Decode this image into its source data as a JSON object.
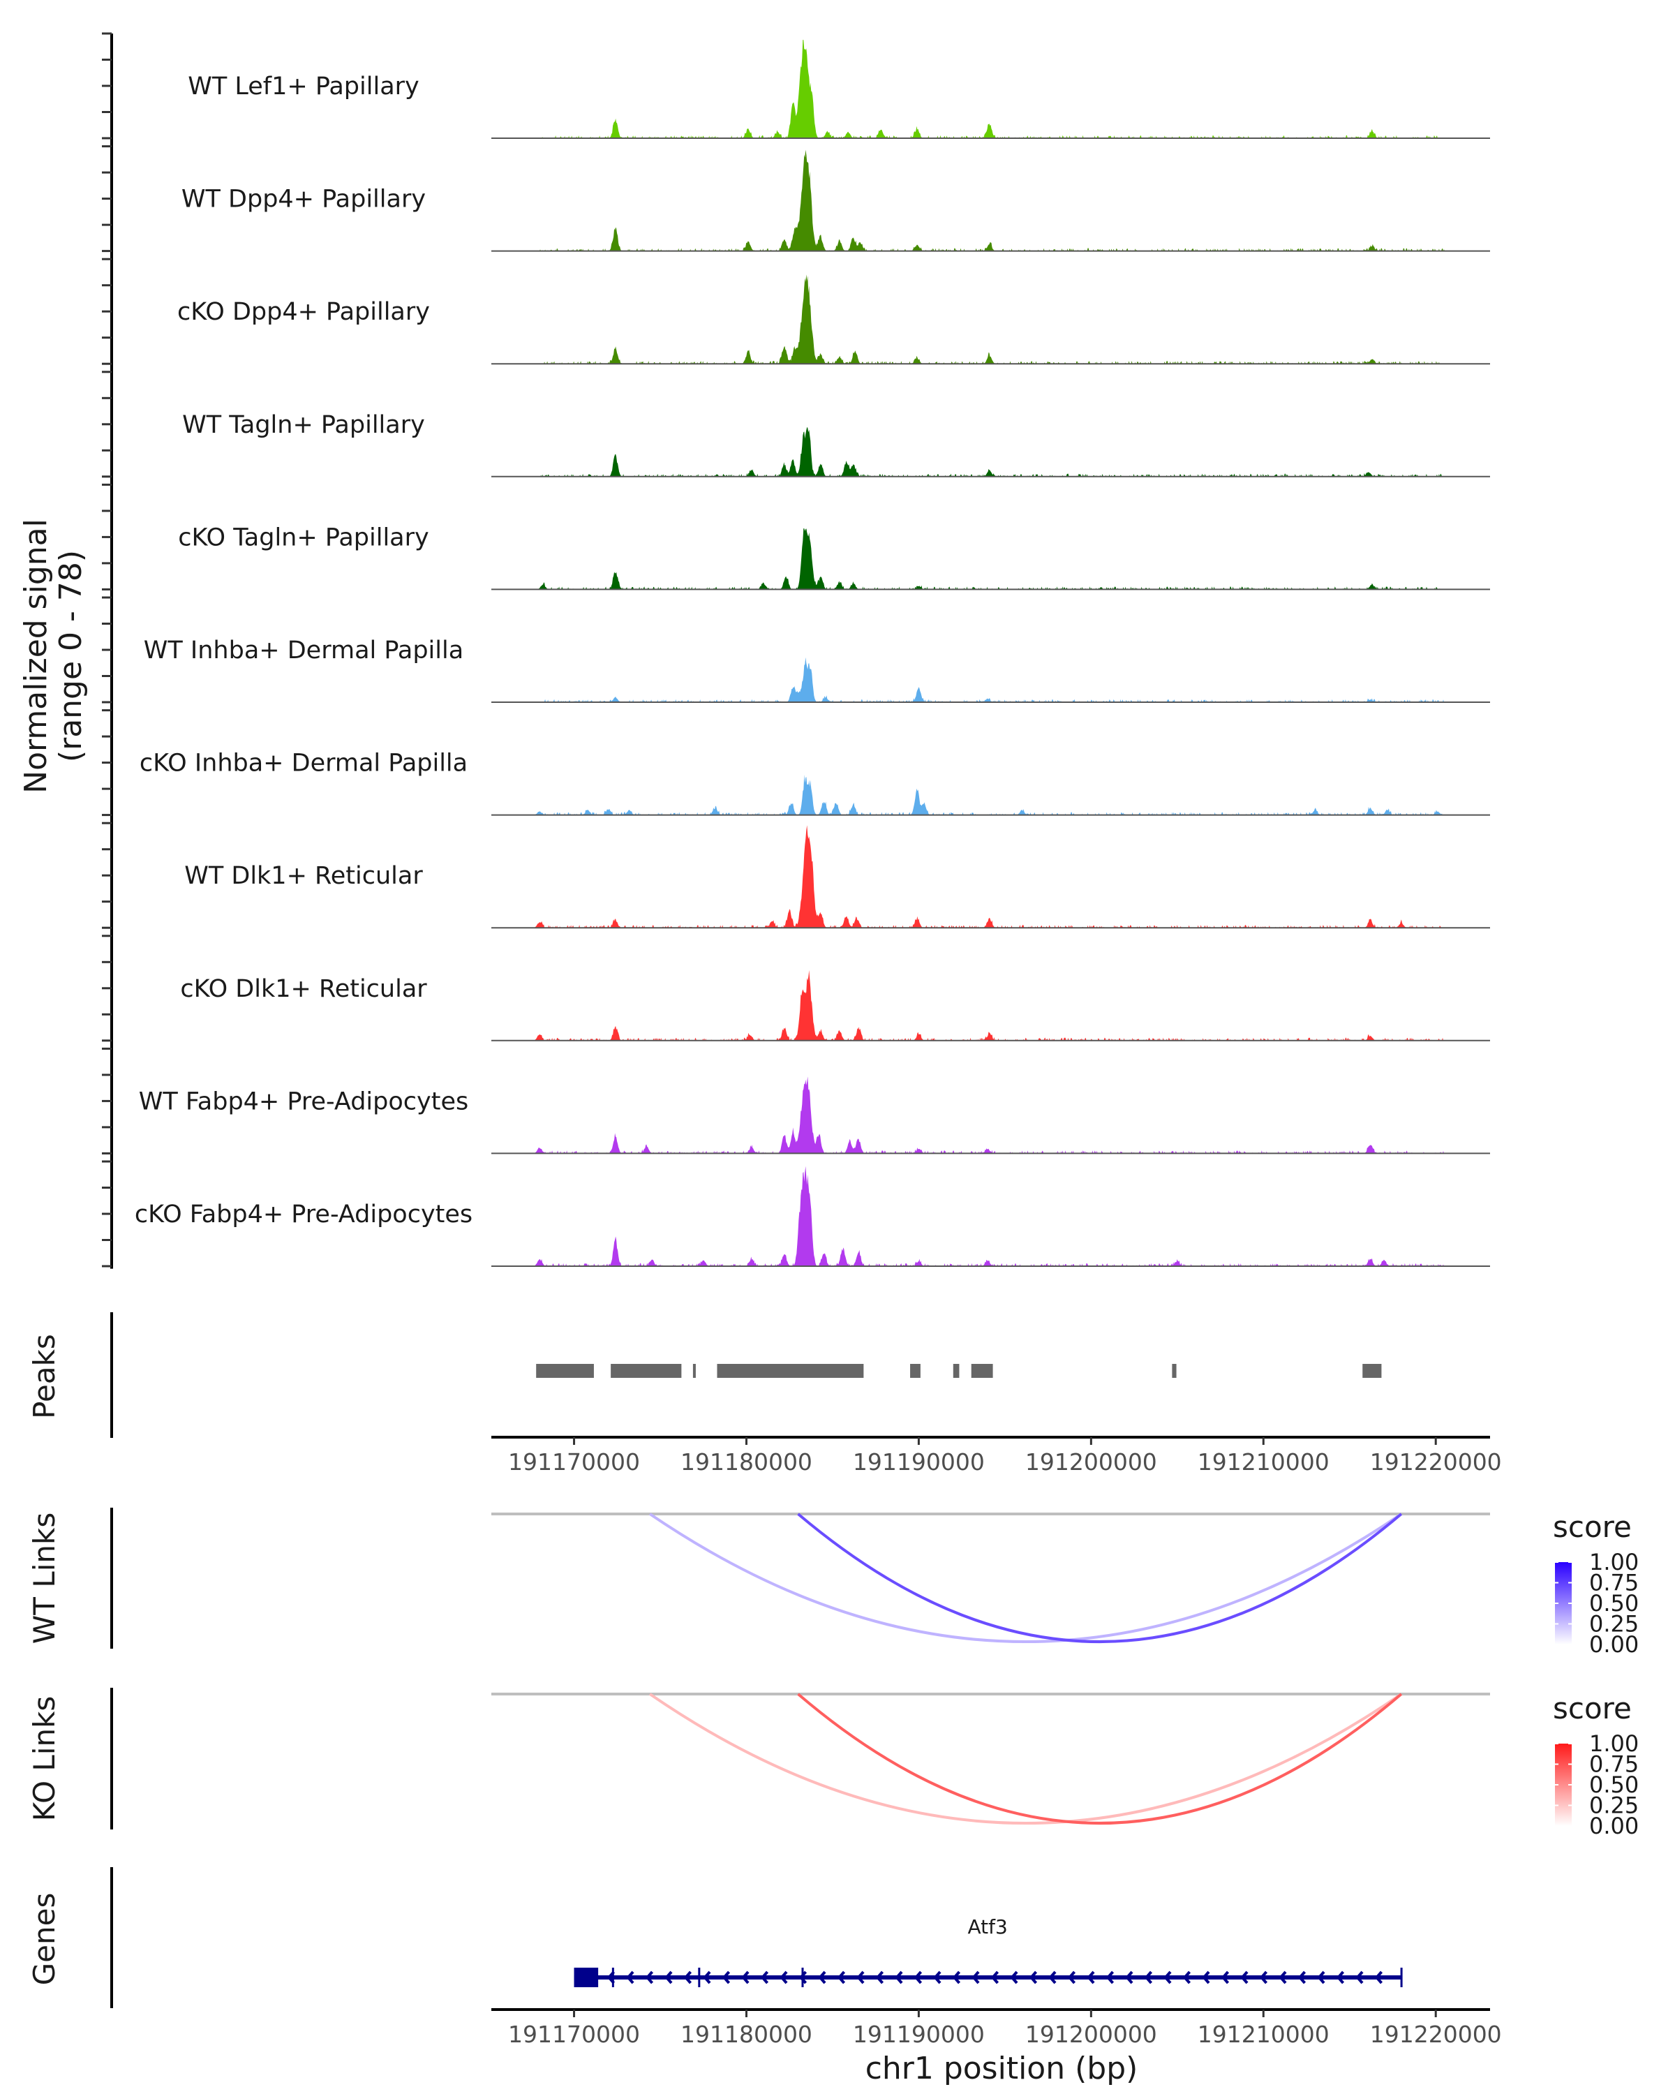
{
  "chart_data": {
    "type": "area",
    "title": "",
    "region": {
      "chrom": "chr1",
      "start": 191165200,
      "end": 191223150
    },
    "ylabel_line1": "Normalized signal",
    "ylabel_line2": "(range 0 - 78)",
    "ylim": [
      0,
      78
    ],
    "xlabel": "chr1 position (bp)",
    "x_ticks": [
      191170000,
      191180000,
      191190000,
      191200000,
      191210000,
      191220000
    ],
    "x_tick_labels": [
      "191170000",
      "191180000",
      "191190000",
      "191200000",
      "191210000",
      "191220000"
    ],
    "tracks": [
      {
        "name": "WT Lef1+ Papillary",
        "color": "#66CD00",
        "peaks": [
          [
            191172400,
            15
          ],
          [
            191180100,
            8
          ],
          [
            191181800,
            5
          ],
          [
            191182700,
            30
          ],
          [
            191183100,
            32
          ],
          [
            191183400,
            78
          ],
          [
            191183800,
            30
          ],
          [
            191184700,
            5
          ],
          [
            191185900,
            5
          ],
          [
            191187800,
            8
          ],
          [
            191189900,
            8
          ],
          [
            191194100,
            12
          ],
          [
            191216300,
            6
          ]
        ]
      },
      {
        "name": "WT Dpp4+ Papillary",
        "color": "#458B00",
        "peaks": [
          [
            191172400,
            20
          ],
          [
            191180100,
            8
          ],
          [
            191182200,
            10
          ],
          [
            191182800,
            18
          ],
          [
            191183300,
            55
          ],
          [
            191183600,
            60
          ],
          [
            191184300,
            12
          ],
          [
            191185400,
            8
          ],
          [
            191186200,
            10
          ],
          [
            191186600,
            7
          ],
          [
            191189900,
            5
          ],
          [
            191194100,
            6
          ],
          [
            191216300,
            4
          ]
        ]
      },
      {
        "name": "cKO Dpp4+ Papillary",
        "color": "#458B00",
        "peaks": [
          [
            191172400,
            12
          ],
          [
            191180100,
            10
          ],
          [
            191182200,
            15
          ],
          [
            191182800,
            12
          ],
          [
            191183300,
            42
          ],
          [
            191183600,
            55
          ],
          [
            191184300,
            8
          ],
          [
            191185400,
            6
          ],
          [
            191186300,
            10
          ],
          [
            191189900,
            5
          ],
          [
            191194100,
            7
          ],
          [
            191216300,
            4
          ]
        ]
      },
      {
        "name": "WT Tagln+ Papillary",
        "color": "#006400",
        "peaks": [
          [
            191172400,
            18
          ],
          [
            191180300,
            5
          ],
          [
            191182200,
            10
          ],
          [
            191182700,
            14
          ],
          [
            191183300,
            32
          ],
          [
            191183600,
            40
          ],
          [
            191184300,
            10
          ],
          [
            191185800,
            12
          ],
          [
            191186200,
            10
          ],
          [
            191194100,
            5
          ],
          [
            191216100,
            4
          ]
        ]
      },
      {
        "name": "cKO Tagln+ Papillary",
        "color": "#006400",
        "peaks": [
          [
            191168200,
            4
          ],
          [
            191172400,
            15
          ],
          [
            191181000,
            5
          ],
          [
            191182300,
            10
          ],
          [
            191183300,
            32
          ],
          [
            191183600,
            48
          ],
          [
            191184300,
            10
          ],
          [
            191185400,
            6
          ],
          [
            191186200,
            5
          ],
          [
            191190000,
            3
          ],
          [
            191216300,
            4
          ]
        ]
      },
      {
        "name": "WT Inhba+ Dermal Papilla",
        "color": "#5DADEC",
        "peaks": [
          [
            191172400,
            4
          ],
          [
            191182700,
            12
          ],
          [
            191183000,
            8
          ],
          [
            191183400,
            32
          ],
          [
            191183700,
            30
          ],
          [
            191184600,
            4
          ],
          [
            191190000,
            12
          ],
          [
            191194000,
            3
          ],
          [
            191216200,
            2
          ]
        ]
      },
      {
        "name": "cKO Inhba+ Dermal Papilla",
        "color": "#5DADEC",
        "peaks": [
          [
            191168000,
            3
          ],
          [
            191170800,
            4
          ],
          [
            191172000,
            5
          ],
          [
            191173200,
            4
          ],
          [
            191178200,
            6
          ],
          [
            191182600,
            10
          ],
          [
            191183400,
            30
          ],
          [
            191183700,
            25
          ],
          [
            191184500,
            12
          ],
          [
            191185200,
            10
          ],
          [
            191186200,
            8
          ],
          [
            191189900,
            22
          ],
          [
            191190300,
            10
          ],
          [
            191196000,
            4
          ],
          [
            191213000,
            4
          ],
          [
            191216200,
            6
          ],
          [
            191217200,
            4
          ],
          [
            191220100,
            3
          ]
        ]
      },
      {
        "name": "WT Dlk1+ Reticular",
        "color": "#FF3333",
        "peaks": [
          [
            191168000,
            5
          ],
          [
            191172400,
            6
          ],
          [
            191181500,
            5
          ],
          [
            191182500,
            15
          ],
          [
            191183400,
            50
          ],
          [
            191183700,
            65
          ],
          [
            191184300,
            12
          ],
          [
            191185800,
            10
          ],
          [
            191186400,
            8
          ],
          [
            191189900,
            8
          ],
          [
            191194100,
            8
          ],
          [
            191216200,
            6
          ],
          [
            191218000,
            4
          ]
        ]
      },
      {
        "name": "cKO Dlk1+ Reticular",
        "color": "#FF3333",
        "peaks": [
          [
            191168000,
            5
          ],
          [
            191172400,
            11
          ],
          [
            191180200,
            5
          ],
          [
            191182200,
            10
          ],
          [
            191183200,
            35
          ],
          [
            191183600,
            55
          ],
          [
            191184300,
            8
          ],
          [
            191185400,
            8
          ],
          [
            191186500,
            10
          ],
          [
            191190000,
            5
          ],
          [
            191194100,
            6
          ],
          [
            191216200,
            4
          ]
        ]
      },
      {
        "name": "WT Fabp4+ Pre-Adipocytes",
        "color": "#B23AEE",
        "peaks": [
          [
            191168000,
            5
          ],
          [
            191172400,
            14
          ],
          [
            191174200,
            6
          ],
          [
            191180300,
            5
          ],
          [
            191182200,
            15
          ],
          [
            191182700,
            18
          ],
          [
            191183300,
            42
          ],
          [
            191183600,
            45
          ],
          [
            191184200,
            15
          ],
          [
            191186000,
            10
          ],
          [
            191186500,
            12
          ],
          [
            191190000,
            4
          ],
          [
            191194000,
            4
          ],
          [
            191216200,
            8
          ]
        ]
      },
      {
        "name": "cKO Fabp4+ Pre-Adipocytes",
        "color": "#B23AEE",
        "peaks": [
          [
            191168000,
            6
          ],
          [
            191172400,
            22
          ],
          [
            191174500,
            5
          ],
          [
            191177500,
            5
          ],
          [
            191180300,
            6
          ],
          [
            191182200,
            10
          ],
          [
            191183100,
            30
          ],
          [
            191183400,
            78
          ],
          [
            191183700,
            35
          ],
          [
            191184500,
            10
          ],
          [
            191185600,
            15
          ],
          [
            191186500,
            12
          ],
          [
            191190000,
            4
          ],
          [
            191194000,
            5
          ],
          [
            191205000,
            4
          ],
          [
            191216200,
            6
          ],
          [
            191217000,
            5
          ]
        ]
      }
    ],
    "peaks_track": {
      "label": "Peaks",
      "color": "#666666",
      "regions": [
        [
          191167800,
          191171150
        ],
        [
          191172130,
          191176230
        ],
        [
          191176900,
          191177050
        ],
        [
          191178300,
          191186800
        ],
        [
          191189500,
          191190100
        ],
        [
          191192000,
          191192350
        ],
        [
          191193050,
          191194300
        ],
        [
          191204700,
          191204950
        ],
        [
          191215750,
          191216850
        ]
      ]
    },
    "links": [
      {
        "label": "WT Links",
        "legend_title": "score",
        "low_color": "#FFFFFF",
        "high_color": "#2A00FF",
        "arcs": [
          {
            "start": 191174400,
            "end": 191218000,
            "score": 0.3
          },
          {
            "start": 191183000,
            "end": 191218000,
            "score": 0.7
          }
        ]
      },
      {
        "label": "KO Links",
        "legend_title": "score",
        "low_color": "#FFFFFF",
        "high_color": "#FF1A1A",
        "arcs": [
          {
            "start": 191174400,
            "end": 191218000,
            "score": 0.3
          },
          {
            "start": 191183000,
            "end": 191218000,
            "score": 0.7
          }
        ]
      }
    ],
    "legend_values": [
      "1.00",
      "0.75",
      "0.50",
      "0.25",
      "0.00"
    ],
    "genes_track": {
      "label": "Genes",
      "color": "#00008B",
      "genes": [
        {
          "name": "Atf3",
          "strand": "-",
          "start": 191170000,
          "end": 191218000,
          "exons": [
            [
              191170000,
              191171400
            ],
            [
              191172200,
              191172300
            ],
            [
              191177200,
              191177300
            ],
            [
              191183200,
              191183300
            ],
            [
              191217950,
              191218000
            ]
          ]
        }
      ]
    }
  }
}
